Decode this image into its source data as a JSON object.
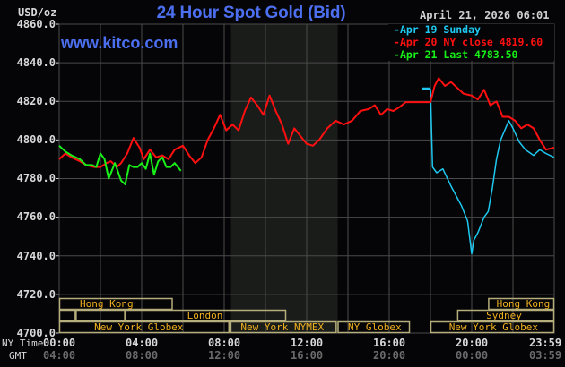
{
  "header": {
    "title": "24 Hour Spot Gold (Bid)",
    "datestamp": "April 21, 2026 06:01",
    "watermark": "www.kitco.com",
    "unit": "USD/oz"
  },
  "legend": [
    {
      "label": "Apr 19 Sunday",
      "color": "#1ec8f0"
    },
    {
      "label": "Apr 20 NY close 4819.60",
      "color": "#ff1010"
    },
    {
      "label": "Apr 21 Last 4783.50",
      "color": "#18f018"
    }
  ],
  "axes": {
    "y_ticks": [
      "4860.0",
      "4840.0",
      "4820.0",
      "4800.0",
      "4780.0",
      "4760.0",
      "4740.0",
      "4720.0",
      "4700.0"
    ],
    "x_row_label_ny": "NY Time",
    "x_row_label_gmt": "GMT",
    "x_ticks_ny": [
      "00:00",
      "04:00",
      "08:00",
      "12:00",
      "16:00",
      "20:00",
      "23:59"
    ],
    "x_ticks_gmt": [
      "04:00",
      "08:00",
      "12:00",
      "16:00",
      "20:00",
      "00:00",
      "03:59"
    ]
  },
  "sessions": {
    "hong_kong_1": "Hong Kong",
    "london": "London",
    "ny_globex_1": "New York Globex",
    "ny_nymex": "New York NYMEX",
    "ny_globex_2": "NY Globex",
    "hong_kong_2": "Hong Kong",
    "sydney": "Sydney",
    "ny_globex_3": "New York Globex"
  },
  "colors": {
    "background": "#050507",
    "grid": "#4a4a4a",
    "shade": "#1a1c1a",
    "session_border": "#b5ad7a",
    "session_text": "#f0b020",
    "title": "#4c6ff0"
  },
  "chart_data": {
    "type": "line",
    "title": "24 Hour Spot Gold (Bid)",
    "xlabel": "NY Time / GMT",
    "ylabel": "USD/oz",
    "ylim": [
      4700,
      4860
    ],
    "xlim_hours_ny": [
      0,
      24
    ],
    "grid": true,
    "legend_position": "top-right",
    "series": [
      {
        "name": "Apr 19 Sunday",
        "color": "#1ec8f0",
        "x_hours": [
          18.0,
          18.0,
          18.1,
          18.3,
          18.6,
          19.0,
          19.3,
          19.5,
          19.8,
          20.0,
          20.1,
          20.3,
          20.6,
          20.8,
          21.0,
          21.2,
          21.4,
          21.6,
          21.8,
          22.0,
          22.3,
          22.6,
          23.0,
          23.3,
          23.6,
          23.99
        ],
        "values": [
          4826.5,
          4826.5,
          4786,
          4783,
          4785,
          4776,
          4770,
          4766,
          4758,
          4741,
          4748,
          4752,
          4760,
          4763,
          4775,
          4790,
          4800,
          4805,
          4810,
          4806,
          4799,
          4795,
          4792,
          4795,
          4793,
          4791
        ]
      },
      {
        "name": "Apr 20 NY close 4819.60",
        "color": "#ff1010",
        "x_hours": [
          0.0,
          0.3,
          0.6,
          1.0,
          1.3,
          1.7,
          2.0,
          2.3,
          2.5,
          2.8,
          3.0,
          3.3,
          3.6,
          3.9,
          4.1,
          4.4,
          4.7,
          5.0,
          5.3,
          5.6,
          6.0,
          6.3,
          6.6,
          6.9,
          7.2,
          7.5,
          7.8,
          8.1,
          8.4,
          8.7,
          9.0,
          9.3,
          9.6,
          9.9,
          10.2,
          10.5,
          10.8,
          11.1,
          11.4,
          11.7,
          12.0,
          12.3,
          12.6,
          13.0,
          13.4,
          13.8,
          14.2,
          14.6,
          15.0,
          15.3,
          15.6,
          15.9,
          16.2,
          16.5,
          16.8,
          17.1,
          17.5,
          18.0,
          18.2,
          18.4,
          18.7,
          19.0,
          19.3,
          19.6,
          20.0,
          20.3,
          20.6,
          20.9,
          21.2,
          21.5,
          21.8,
          22.1,
          22.4,
          22.7,
          23.0,
          23.3,
          23.6,
          23.99
        ],
        "values": [
          4790,
          4793,
          4791,
          4789,
          4787,
          4786,
          4786,
          4788,
          4789,
          4786,
          4788,
          4793,
          4801,
          4796,
          4790,
          4795,
          4791,
          4792,
          4790,
          4795,
          4797,
          4792,
          4788,
          4791,
          4800,
          4806,
          4813,
          4805,
          4808,
          4805,
          4815,
          4822,
          4818,
          4813,
          4823,
          4815,
          4808,
          4798,
          4806,
          4802,
          4798,
          4797,
          4800,
          4806,
          4810,
          4808,
          4810,
          4815,
          4816,
          4818,
          4813,
          4816,
          4815,
          4817,
          4819.6,
          4819.6,
          4819.6,
          4819.6,
          4828,
          4832,
          4828,
          4830,
          4827,
          4824,
          4823,
          4821,
          4826,
          4818,
          4820,
          4812,
          4812,
          4810,
          4806,
          4808,
          4806,
          4800,
          4795,
          4796
        ]
      },
      {
        "name": "Apr 21 Last 4783.50",
        "color": "#18f018",
        "x_hours": [
          0.0,
          0.3,
          0.6,
          1.0,
          1.3,
          1.6,
          1.8,
          2.0,
          2.2,
          2.4,
          2.7,
          3.0,
          3.2,
          3.4,
          3.6,
          3.8,
          4.0,
          4.2,
          4.4,
          4.6,
          4.8,
          5.0,
          5.2,
          5.4,
          5.6,
          5.9
        ],
        "values": [
          4797,
          4794,
          4792,
          4790,
          4787,
          4787,
          4786,
          4793,
          4790,
          4780,
          4788,
          4779,
          4777,
          4787,
          4786,
          4786,
          4788,
          4785,
          4793,
          4782,
          4789,
          4791,
          4786,
          4786,
          4788,
          4784
        ]
      }
    ]
  }
}
